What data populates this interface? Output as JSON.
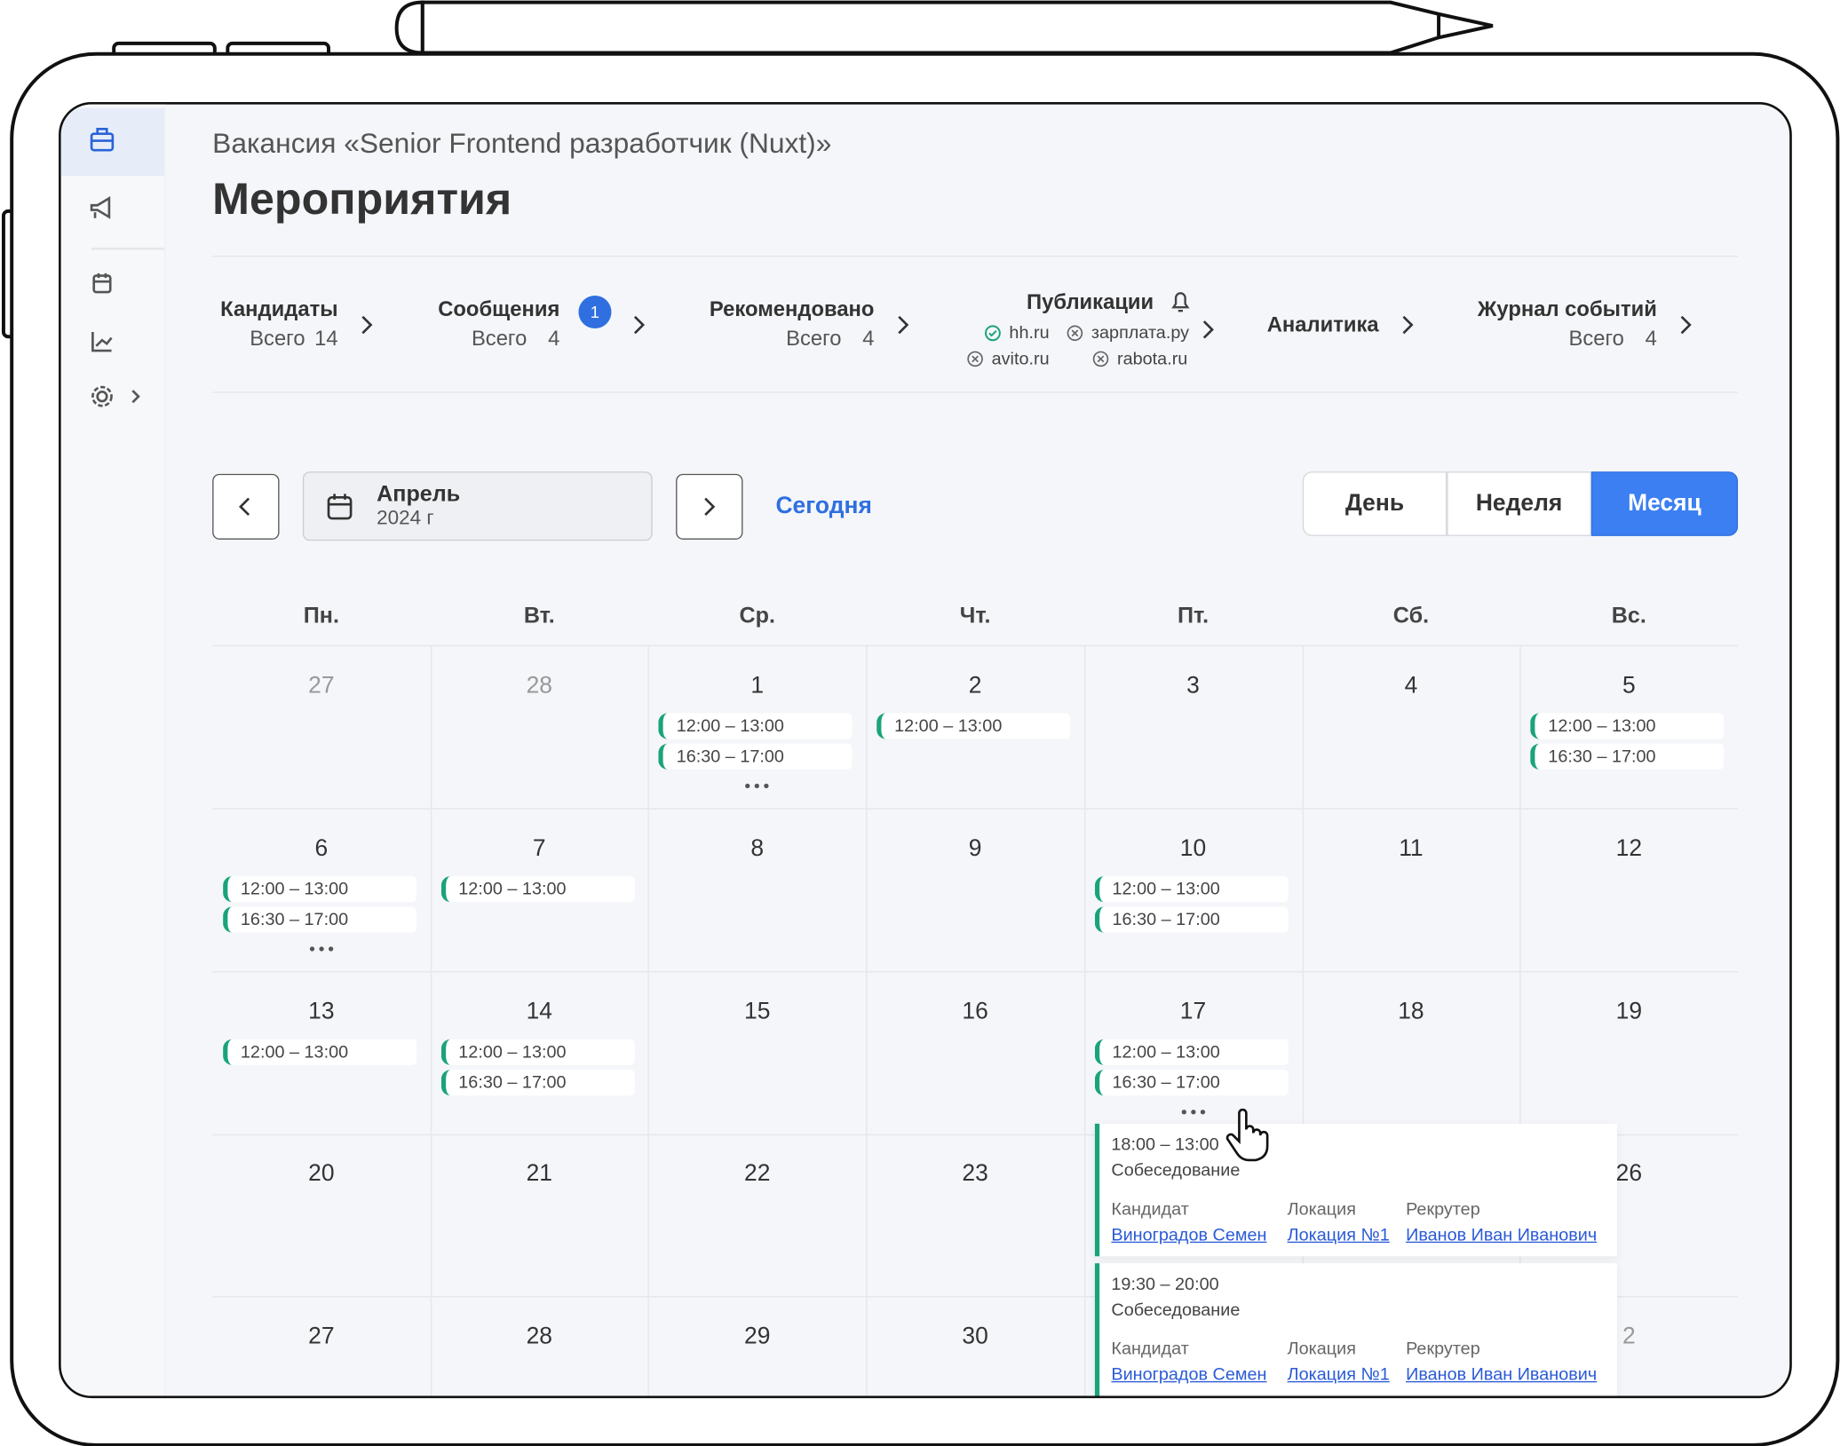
{
  "header": {
    "subtitle": "Вакансия «Senior Frontend разработчик (Nuxt)»",
    "title": "Мероприятия"
  },
  "tabs": [
    {
      "label": "Кандидаты",
      "total_label": "Всего",
      "total": 14
    },
    {
      "label": "Сообщения",
      "badge": 1,
      "total_label": "Всего",
      "total": 4
    },
    {
      "label": "Рекомендовано",
      "total_label": "Всего",
      "total": 4
    },
    {
      "label": "Публикации",
      "sites": [
        {
          "name": "hh.ru",
          "ok": true
        },
        {
          "name": "зарплата.ру",
          "ok": false
        },
        {
          "name": "avito.ru",
          "ok": false
        },
        {
          "name": "rabota.ru",
          "ok": false
        }
      ]
    },
    {
      "label": "Аналитика"
    },
    {
      "label": "Журнал событий",
      "total_label": "Всего",
      "total": 4
    }
  ],
  "toolbar": {
    "month": "Апрель",
    "year": "2024 г",
    "today": "Сегодня",
    "views": [
      "День",
      "Неделя",
      "Месяц"
    ],
    "active_view": 2
  },
  "calendar": {
    "weekdays": [
      "Пн.",
      "Вт.",
      "Ср.",
      "Чт.",
      "Пт.",
      "Сб.",
      "Вс."
    ],
    "weeks": [
      [
        {
          "day": 27,
          "muted": true,
          "events": []
        },
        {
          "day": 28,
          "muted": true,
          "events": []
        },
        {
          "day": 1,
          "events": [
            "12:00 – 13:00",
            "16:30 – 17:00"
          ],
          "more": true
        },
        {
          "day": 2,
          "events": [
            "12:00 – 13:00"
          ]
        },
        {
          "day": 3,
          "events": []
        },
        {
          "day": 4,
          "events": []
        },
        {
          "day": 5,
          "events": [
            "12:00 – 13:00",
            "16:30 – 17:00"
          ]
        }
      ],
      [
        {
          "day": 6,
          "events": [
            "12:00 – 13:00",
            "16:30 – 17:00"
          ],
          "more": true
        },
        {
          "day": 7,
          "events": [
            "12:00 – 13:00"
          ]
        },
        {
          "day": 8,
          "events": []
        },
        {
          "day": 9,
          "events": []
        },
        {
          "day": 10,
          "events": [
            "12:00 – 13:00",
            "16:30 – 17:00"
          ]
        },
        {
          "day": 11,
          "events": []
        },
        {
          "day": 12,
          "events": []
        }
      ],
      [
        {
          "day": 13,
          "events": [
            "12:00 – 13:00"
          ]
        },
        {
          "day": 14,
          "events": [
            "12:00 – 13:00",
            "16:30 – 17:00"
          ]
        },
        {
          "day": 15,
          "events": []
        },
        {
          "day": 16,
          "events": []
        },
        {
          "day": 17,
          "events": [
            "12:00 – 13:00",
            "16:30 – 17:00"
          ],
          "more": true
        },
        {
          "day": 18,
          "events": []
        },
        {
          "day": 19,
          "events": []
        }
      ],
      [
        {
          "day": 20,
          "events": []
        },
        {
          "day": 21,
          "events": []
        },
        {
          "day": 22,
          "events": []
        },
        {
          "day": 23,
          "events": []
        },
        null,
        null,
        {
          "day": 26,
          "events": []
        }
      ],
      [
        {
          "day": 27,
          "events": []
        },
        {
          "day": 28,
          "events": []
        },
        {
          "day": 29,
          "events": []
        },
        {
          "day": 30,
          "events": []
        },
        null,
        null,
        {
          "day": 2,
          "muted": true,
          "events": []
        }
      ]
    ]
  },
  "popover": {
    "events": [
      {
        "time": "18:00 – 13:00",
        "type": "Собеседование",
        "fields": [
          {
            "label": "Кандидат",
            "value": "Виноградов Семен"
          },
          {
            "label": "Локация",
            "value": "Локация №1"
          },
          {
            "label": "Рекрутер",
            "value": "Иванов Иван Иванович"
          }
        ]
      },
      {
        "time": "19:30 – 20:00",
        "type": "Собеседование",
        "fields": [
          {
            "label": "Кандидат",
            "value": "Виноградов Семен"
          },
          {
            "label": "Локация",
            "value": "Локация №1"
          },
          {
            "label": "Рекрутер",
            "value": "Иванов Иван Иванович"
          }
        ]
      }
    ]
  }
}
